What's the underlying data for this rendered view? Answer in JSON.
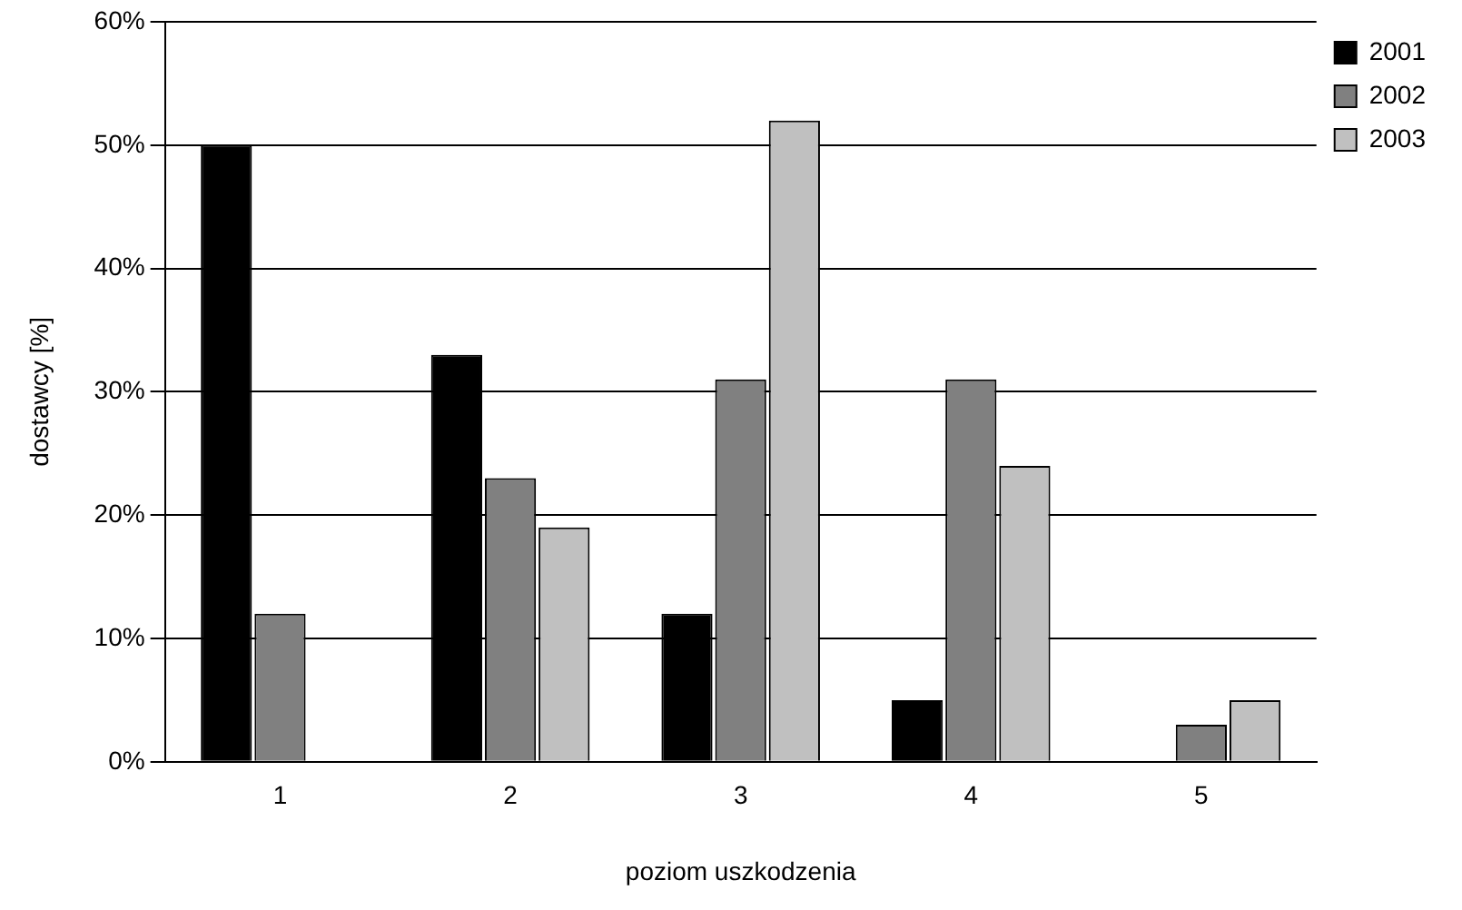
{
  "chart_data": {
    "type": "bar",
    "xlabel": "poziom uszkodzenia",
    "ylabel": "dostawcy [%]",
    "categories": [
      "1",
      "2",
      "3",
      "4",
      "5"
    ],
    "series": [
      {
        "name": "2001",
        "color": "#000000",
        "values": [
          50,
          33,
          12,
          5,
          0
        ]
      },
      {
        "name": "2002",
        "color": "#808080",
        "values": [
          12,
          23,
          31,
          31,
          3
        ]
      },
      {
        "name": "2003",
        "color": "#c0c0c0",
        "values": [
          0,
          19,
          52,
          24,
          5
        ]
      }
    ],
    "ylim": [
      0,
      60
    ],
    "yticks": [
      {
        "value": 0,
        "label": "0%"
      },
      {
        "value": 10,
        "label": "10%"
      },
      {
        "value": 20,
        "label": "20%"
      },
      {
        "value": 30,
        "label": "30%"
      },
      {
        "value": 40,
        "label": "40%"
      },
      {
        "value": 50,
        "label": "50%"
      },
      {
        "value": 60,
        "label": "60%"
      }
    ],
    "grid": "y",
    "legend": "top right"
  }
}
